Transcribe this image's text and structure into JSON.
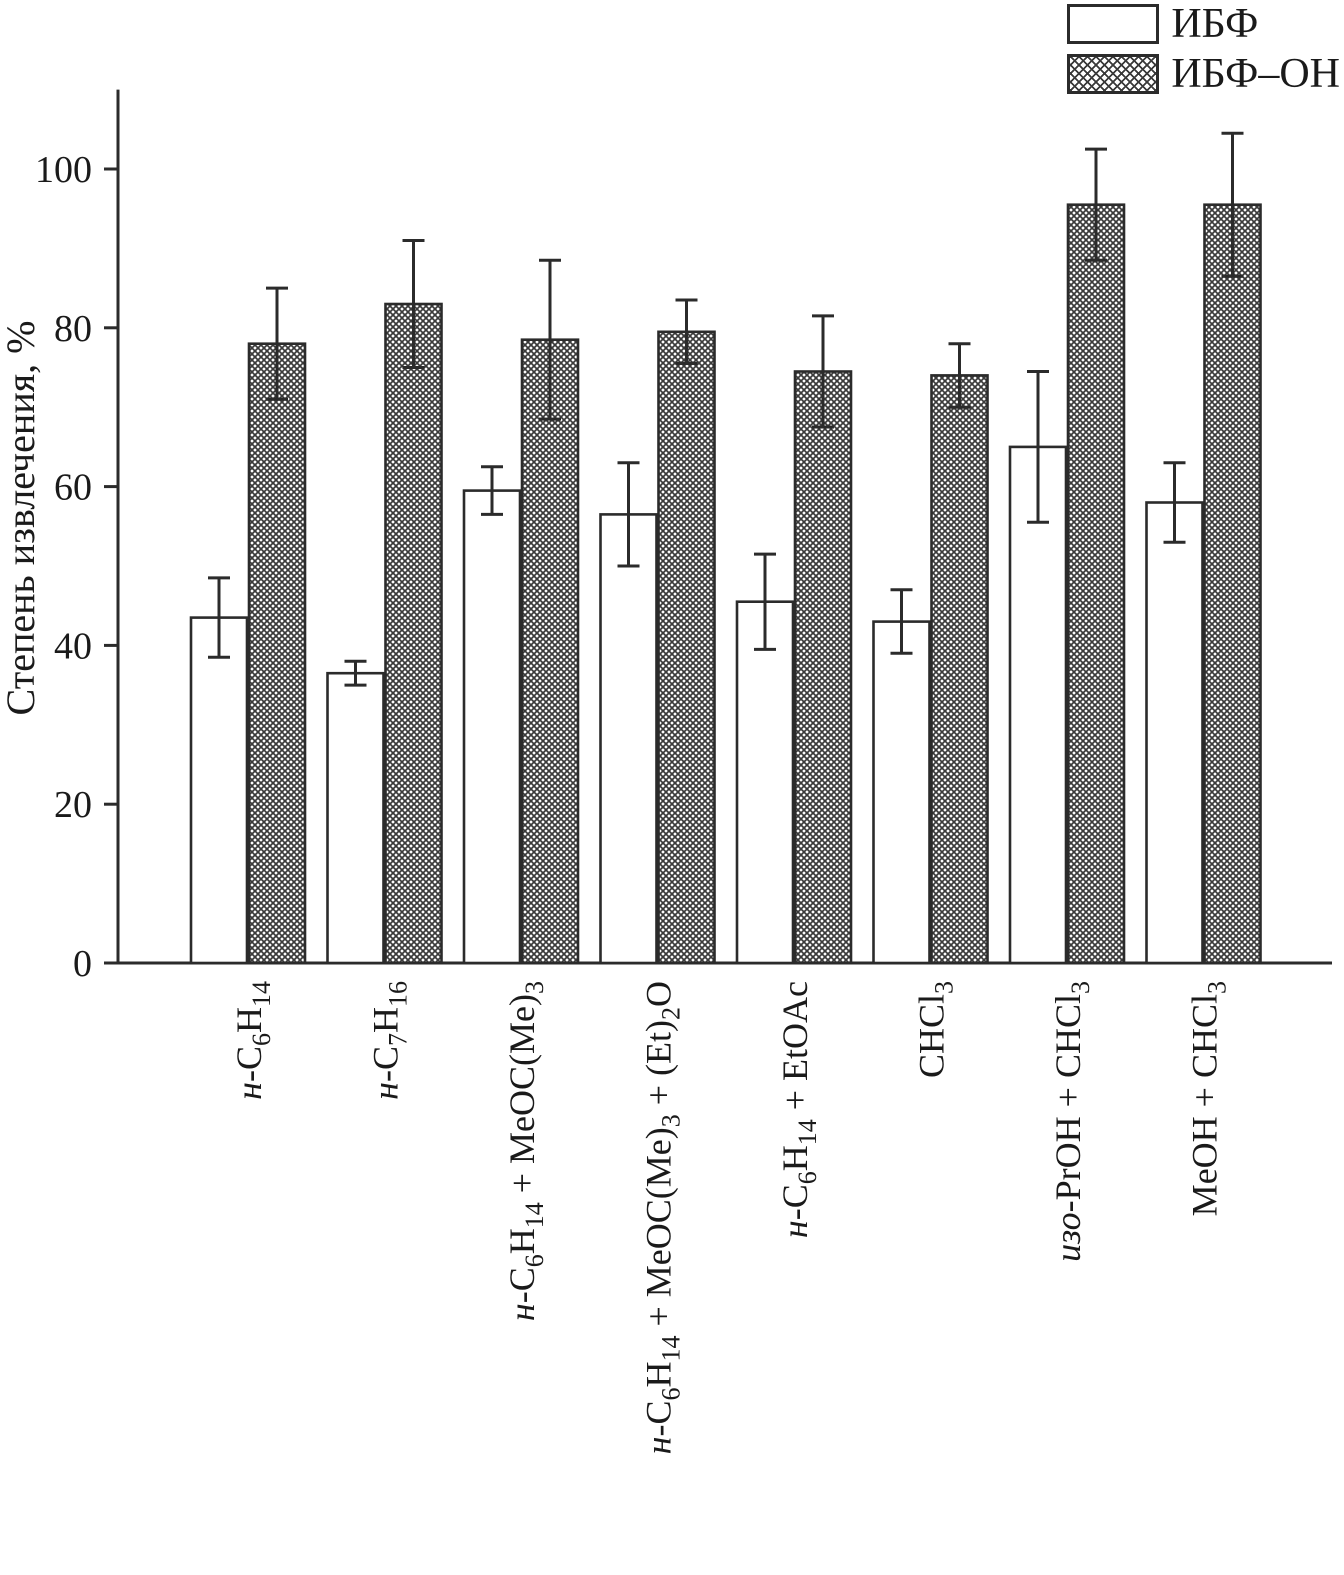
{
  "chart_data": {
    "type": "bar",
    "title": "",
    "xlabel": "",
    "ylabel": "Степень извлечения, %",
    "ylim": [
      0,
      110
    ],
    "yticks": [
      0,
      20,
      40,
      60,
      80,
      100
    ],
    "grid": false,
    "legend_position": "top-right",
    "categories": [
      "н-C₆H₁₄",
      "н-C₇H₁₆",
      "н-C₆H₁₄ + MeOC(Me)₃",
      "н-C₆H₁₄ + MeOC(Me)₃ + (Et)₂O",
      "н-C₆H₁₄ + EtOAc",
      "CHCl₃",
      "изо-PrOH + CHCl₃",
      "MeOH + CHCl₃"
    ],
    "series": [
      {
        "name": "ИБФ",
        "style": "white",
        "values": [
          43.5,
          36.5,
          59.5,
          56.5,
          45.5,
          43.0,
          65.0,
          58.0
        ],
        "errors": [
          5.0,
          1.5,
          3.0,
          6.5,
          6.0,
          4.0,
          9.5,
          5.0
        ]
      },
      {
        "name": "ИБФ–ОН",
        "style": "crosshatch",
        "values": [
          78.0,
          83.0,
          78.5,
          79.5,
          74.5,
          74.0,
          95.5,
          95.5
        ],
        "errors": [
          7.0,
          8.0,
          10.0,
          4.0,
          7.0,
          4.0,
          7.0,
          9.0
        ]
      }
    ]
  },
  "colors": {
    "axis": "#2b2b2b",
    "bar_fill_plain": "#ffffff",
    "hatch_line": "#3a3a3a",
    "background": "#ffffff"
  }
}
